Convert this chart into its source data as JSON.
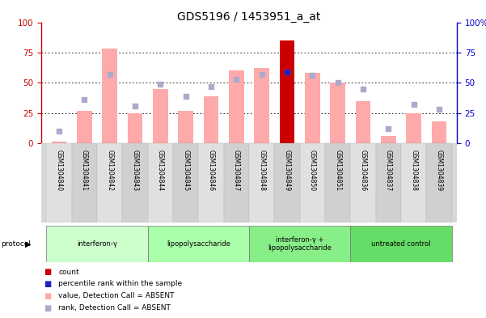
{
  "title": "GDS5196 / 1453951_a_at",
  "samples": [
    "GSM1304840",
    "GSM1304841",
    "GSM1304842",
    "GSM1304843",
    "GSM1304844",
    "GSM1304845",
    "GSM1304846",
    "GSM1304847",
    "GSM1304848",
    "GSM1304849",
    "GSM1304850",
    "GSM1304851",
    "GSM1304836",
    "GSM1304837",
    "GSM1304838",
    "GSM1304839"
  ],
  "pink_bar_values": [
    1,
    27,
    78,
    25,
    45,
    27,
    39,
    60,
    62,
    85,
    58,
    50,
    35,
    6,
    25,
    18
  ],
  "blue_dot_values": [
    10,
    36,
    57,
    31,
    49,
    39,
    47,
    53,
    57,
    59,
    56,
    50,
    45,
    12,
    32,
    28
  ],
  "red_bar_values": [
    0,
    0,
    0,
    0,
    0,
    0,
    0,
    0,
    0,
    85,
    0,
    0,
    0,
    0,
    0,
    0
  ],
  "dark_blue_dot_values": [
    0,
    0,
    0,
    0,
    0,
    0,
    0,
    0,
    0,
    59,
    0,
    0,
    0,
    0,
    0,
    0
  ],
  "protocols": [
    {
      "label": "interferon-γ",
      "start": 0,
      "end": 4
    },
    {
      "label": "lipopolysaccharide",
      "start": 4,
      "end": 8
    },
    {
      "label": "interferon-γ +\nlipopolysaccharide",
      "start": 8,
      "end": 12
    },
    {
      "label": "untreated control",
      "start": 12,
      "end": 16
    }
  ],
  "proto_colors": [
    "#ccffcc",
    "#aaffaa",
    "#88ee88",
    "#66dd66"
  ],
  "ylim": [
    0,
    100
  ],
  "pink_bar_color": "#ffaaaa",
  "red_bar_color": "#cc0000",
  "blue_dot_color": "#aaaacc",
  "dark_blue_dot_color": "#2222bb",
  "left_axis_color": "#cc0000",
  "right_axis_color": "#0000cc",
  "bg_color": "#ffffff",
  "title_fontsize": 10,
  "bar_width": 0.6
}
